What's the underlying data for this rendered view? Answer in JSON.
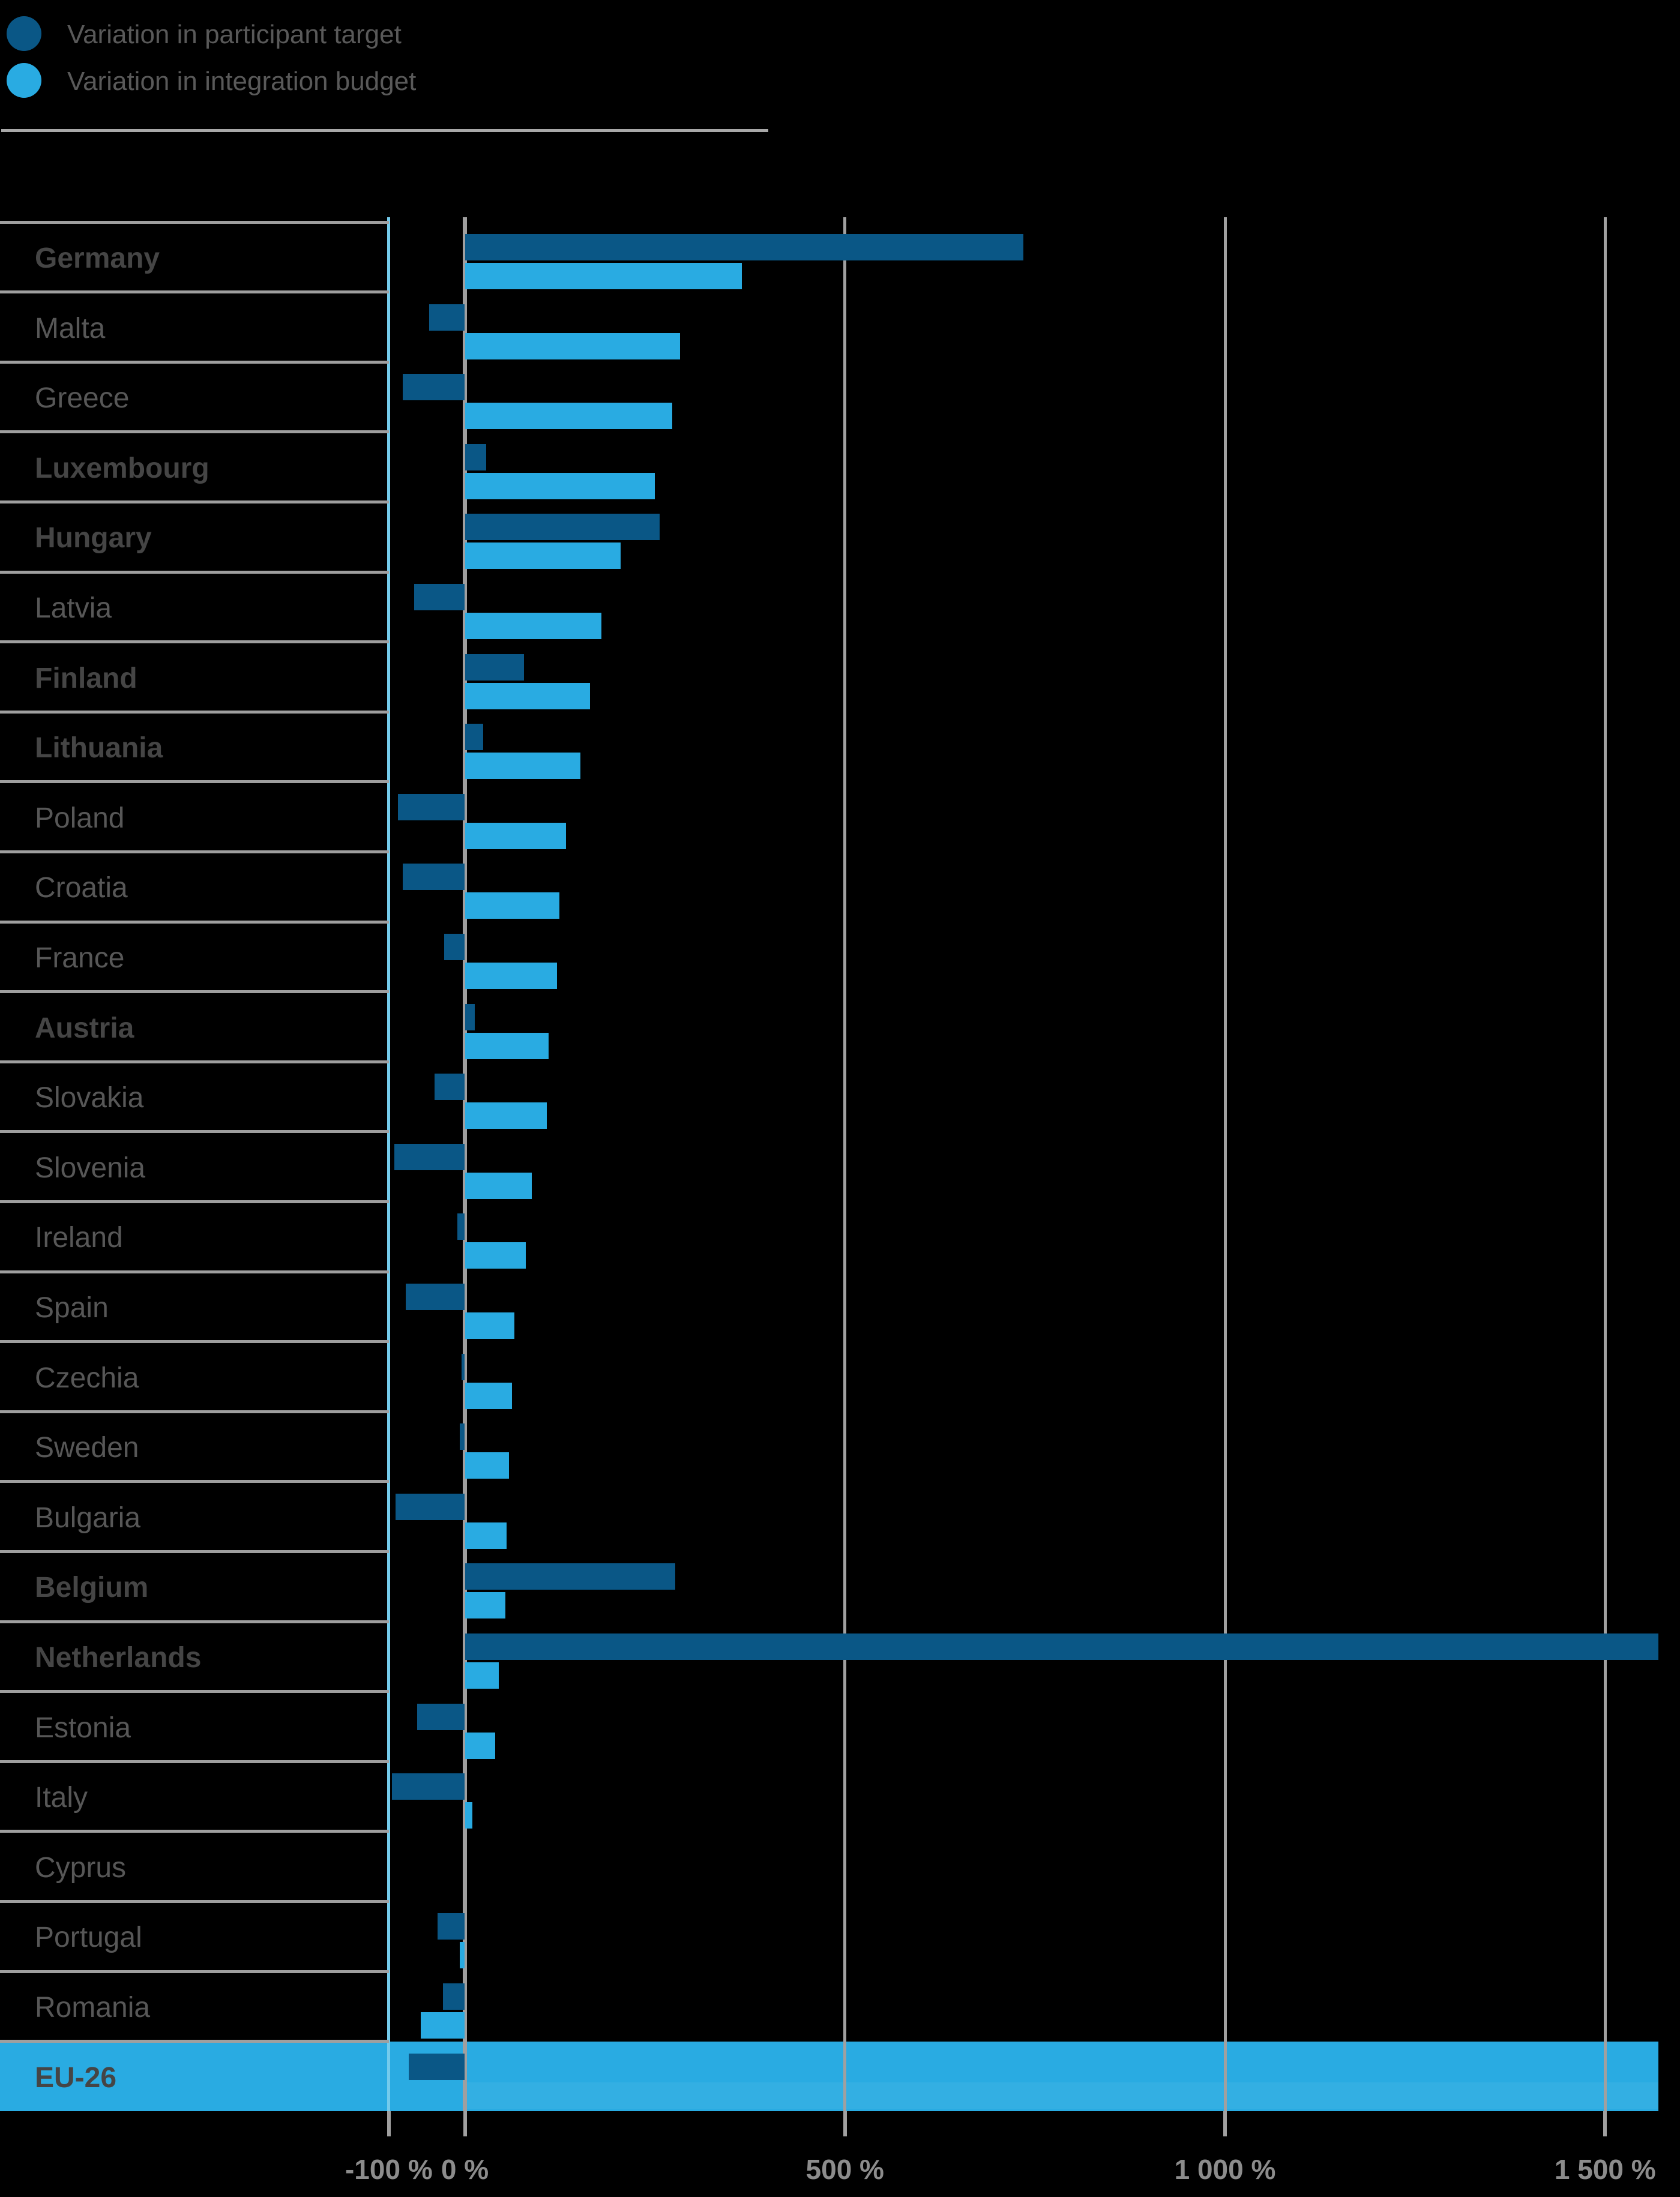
{
  "page": {
    "background_color": "#000000"
  },
  "legend": {
    "divider_color": "#a8a8a8"
  },
  "chart_data": {
    "type": "bar",
    "orientation": "horizontal",
    "unit": "%",
    "title": "",
    "xlabel": "",
    "ylabel": "",
    "grid": "vertical",
    "legend_position": "top-left",
    "xlim": [
      -100,
      1595
    ],
    "categories": [
      "Germany",
      "Malta",
      "Greece",
      "Luxembourg",
      "Hungary",
      "Latvia",
      "Finland",
      "Lithuania",
      "Poland",
      "Croatia",
      "France",
      "Austria",
      "Slovakia",
      "Slovenia",
      "Ireland",
      "Spain",
      "Czechia",
      "Sweden",
      "Bulgaria",
      "Belgium",
      "Netherlands",
      "Estonia",
      "Italy",
      "Cyprus",
      "Portugal",
      "Romania",
      "EU-26"
    ],
    "series": [
      {
        "name": "Variation in participant target",
        "color": "#0a5786",
        "values": [
          735,
          -47,
          -82,
          28,
          256,
          -67,
          78,
          24,
          -88,
          -82,
          -27,
          13,
          -40,
          -93,
          -10,
          -78,
          -4,
          -7,
          -91,
          277,
          1570,
          -63,
          -96,
          0,
          -36,
          -29,
          -74
        ]
      },
      {
        "name": "Variation in integration budget",
        "color": "#29abe2",
        "values": [
          364,
          283,
          273,
          250,
          205,
          180,
          165,
          152,
          133,
          124,
          121,
          110,
          108,
          88,
          80,
          65,
          62,
          58,
          55,
          53,
          45,
          40,
          10,
          0,
          -7,
          -58,
          1570
        ]
      }
    ],
    "bold_categories": [
      "Germany",
      "Luxembourg",
      "Hungary",
      "Finland",
      "Lithuania",
      "Austria",
      "Belgium",
      "Netherlands",
      "EU-26"
    ],
    "highlighted_category": "EU-26",
    "highlight_band_color": "#29abe2",
    "x_ticks": [
      {
        "value": -100,
        "label": "-100 %"
      },
      {
        "value": 0,
        "label": "0 %"
      },
      {
        "value": 500,
        "label": "500 %"
      },
      {
        "value": 1000,
        "label": "1 000 %"
      },
      {
        "value": 1500,
        "label": "1 500 %"
      }
    ],
    "notes": "Netherlands participant-target bar and EU-26 integration-budget bar extend to the right edge of the plot (~ +1 570 %); EU-26 row is highlighted with a full-width light-blue band.",
    "axis_colors": {
      "zero_axis": "#9f9f9f",
      "gridline": "#a0a0a0",
      "minus100_line": "#74cbec",
      "tick_text": "#8c8c8c",
      "separator": "#9f9f9f",
      "label_text": "#575757",
      "label_text_bold": "#454545"
    }
  }
}
